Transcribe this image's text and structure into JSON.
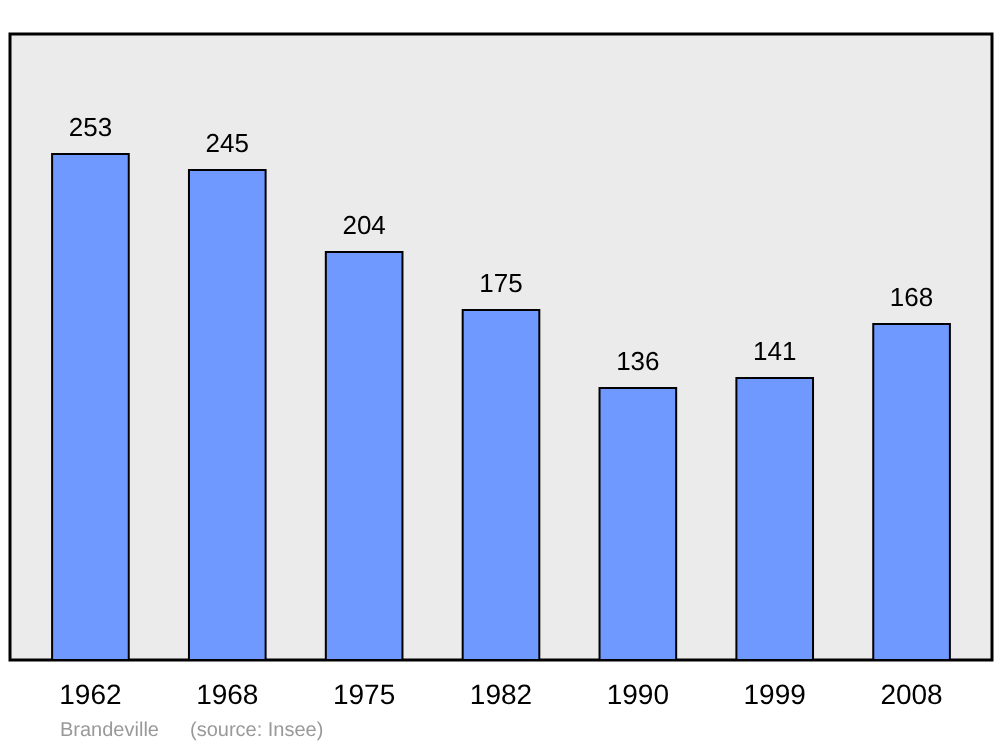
{
  "chart_data": {
    "type": "bar",
    "categories": [
      "1962",
      "1968",
      "1975",
      "1982",
      "1990",
      "1999",
      "2008"
    ],
    "values": [
      253,
      245,
      204,
      175,
      136,
      141,
      168
    ],
    "color": "#7099ff",
    "data_labels": true,
    "annotations": [
      "Brandeville",
      "(source: Insee)"
    ]
  }
}
